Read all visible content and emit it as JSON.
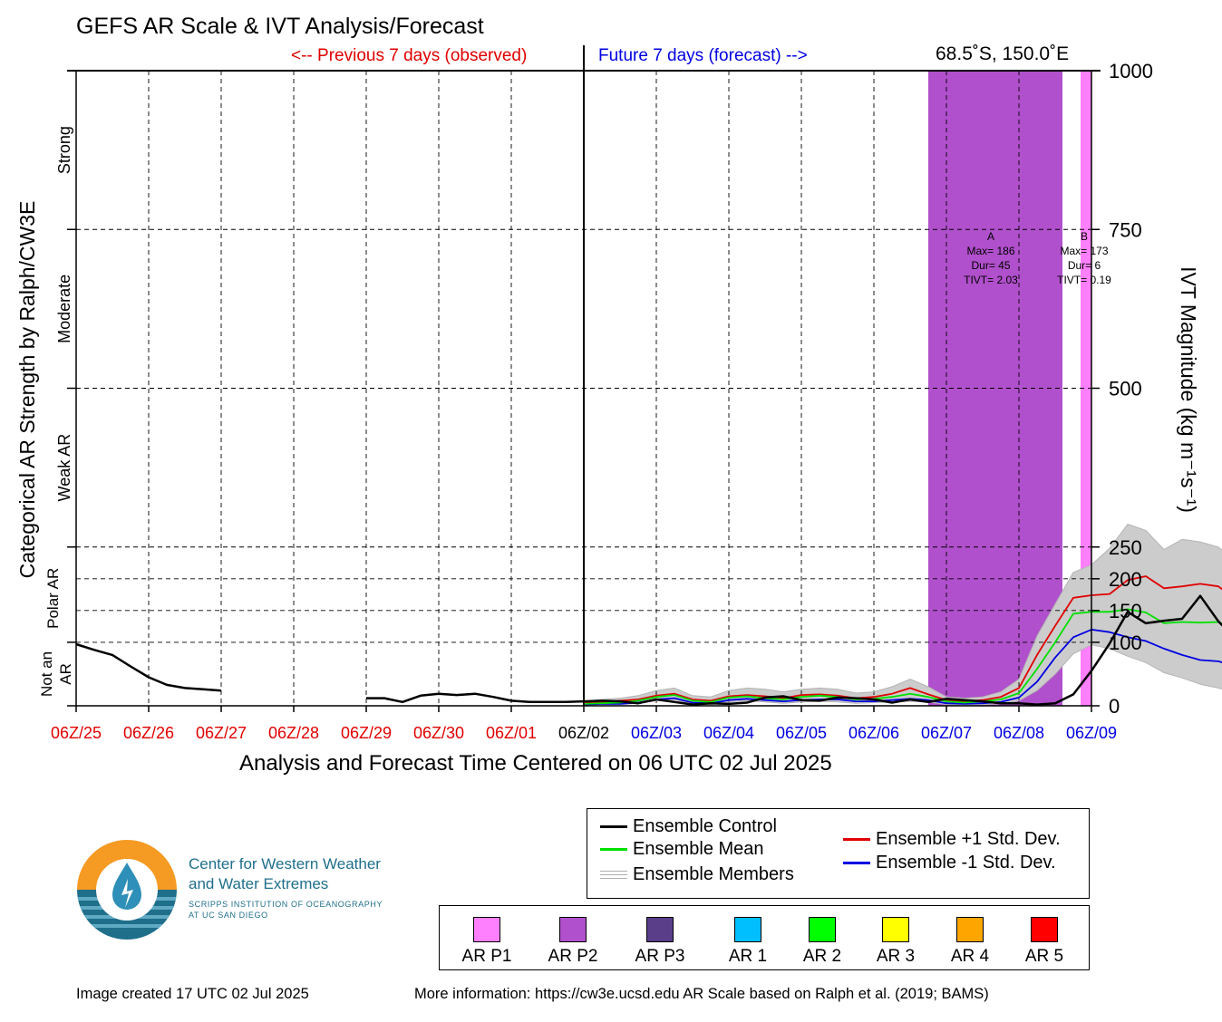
{
  "title": "GEFS AR Scale & IVT Analysis/Forecast",
  "period_labels": {
    "previous": "<-- Previous 7 days (observed)",
    "future": "Future 7 days (forecast) -->"
  },
  "location": "68.5˚S, 150.0˚E",
  "footer": {
    "created": "Image created 17 UTC 02 Jul 2025",
    "more_info": "More information: https://cw3e.ucsd.edu AR Scale based on Ralph et al. (2019; BAMS)"
  },
  "logo": {
    "line1": "Center for Western Weather",
    "line2": "and Water Extremes",
    "line3": "SCRIPPS INSTITUTION OF OCEANOGRAPHY",
    "line4": "AT UC SAN DIEGO"
  },
  "colors": {
    "past_tick": "#e00000",
    "present_tick": "#000000",
    "future_tick": "#0000e0",
    "control": "#000000",
    "mean": "#00e000",
    "plus_std": "#e00000",
    "minus_std": "#0000e0",
    "members": "#b4b4b4",
    "spread_fill": "#cccccc"
  },
  "legend": {
    "series": [
      {
        "label": "Ensemble Control",
        "color": "#000000"
      },
      {
        "label": "Ensemble Mean",
        "color": "#00e000"
      },
      {
        "label": "Ensemble Members",
        "color": "#b4b4b4"
      },
      {
        "label": "Ensemble +1 Std. Dev.",
        "color": "#e00000"
      },
      {
        "label": "Ensemble -1 Std. Dev.",
        "color": "#0000e0"
      }
    ],
    "categories": [
      {
        "label": "AR P1",
        "color": "#ff80ff"
      },
      {
        "label": "AR P2",
        "color": "#b050cc"
      },
      {
        "label": "AR P3",
        "color": "#5a3e8a"
      },
      {
        "label": "AR 1",
        "color": "#00bfff"
      },
      {
        "label": "AR 2",
        "color": "#00ff00"
      },
      {
        "label": "AR 3",
        "color": "#ffff00"
      },
      {
        "label": "AR 4",
        "color": "#ffa500"
      },
      {
        "label": "AR 5",
        "color": "#ff0000"
      }
    ]
  },
  "chart_data": {
    "type": "line",
    "xlabel": "Analysis and Forecast Time Centered on 06 UTC 02 Jul 2025",
    "ylabel_left": "Categorical AR Strength by Ralph/CW3E",
    "ylabel_right": "IVT Magnitude (kg m⁻¹s⁻¹)",
    "x_ticks": [
      "06Z/25",
      "06Z/26",
      "06Z/27",
      "06Z/28",
      "06Z/29",
      "06Z/30",
      "06Z/01",
      "06Z/02",
      "06Z/03",
      "06Z/04",
      "06Z/05",
      "06Z/06",
      "06Z/07",
      "06Z/08",
      "06Z/09"
    ],
    "x_tick_status": [
      "past",
      "past",
      "past",
      "past",
      "past",
      "past",
      "past",
      "present",
      "future",
      "future",
      "future",
      "future",
      "future",
      "future",
      "future"
    ],
    "xlim_days": [
      -7,
      7
    ],
    "time_step_hours": 6,
    "ylim": [
      0,
      1000
    ],
    "y_ticks": [
      0,
      100,
      150,
      200,
      250,
      500,
      750,
      1000
    ],
    "y_tick_labels": [
      "0",
      "100",
      "150",
      "200",
      "250",
      "500",
      "750",
      "1000"
    ],
    "y_gridlines": [
      100,
      150,
      200,
      250,
      500,
      750
    ],
    "grid": true,
    "category_bands": [
      {
        "label": "Not an AR",
        "from": 0,
        "to": 100
      },
      {
        "label": "Polar AR",
        "from": 100,
        "to": 250
      },
      {
        "label": "Weak AR",
        "from": 250,
        "to": 500
      },
      {
        "label": "Moderate",
        "from": 500,
        "to": 750
      },
      {
        "label": "Strong",
        "from": 750,
        "to": 1000
      }
    ],
    "ar_events": [
      {
        "id": "A",
        "start_day": 4.75,
        "end_day": 6.6,
        "category": "AR P2",
        "color": "#b050cc",
        "max_label": "Max= 186",
        "dur_label": "Dur= 45",
        "tivt_label": "TIVT= 2.03"
      },
      {
        "id": "B",
        "start_day": 6.85,
        "end_day": 7.0,
        "category": "AR P1",
        "color": "#ff80ff",
        "max_label": "Max= 173",
        "dur_label": "Dur= 6",
        "tivt_label": "TIVT= 0.19"
      }
    ],
    "series": [
      {
        "name": "Ensemble Control",
        "key": "control",
        "start_day": -7,
        "values": [
          97,
          88,
          80,
          62,
          45,
          33,
          28,
          26,
          24,
          null,
          null,
          null,
          null,
          null,
          null,
          null,
          12,
          12,
          6,
          16,
          19,
          17,
          19,
          14,
          8,
          6,
          6,
          6,
          7,
          8,
          7,
          4,
          10,
          6,
          2,
          4,
          3,
          5,
          13,
          15,
          9,
          8,
          13,
          12,
          10,
          5,
          10,
          6,
          11,
          9,
          7,
          4,
          4,
          2,
          4,
          18,
          55,
          98,
          148,
          130,
          134,
          137,
          173,
          133,
          105,
          106,
          108,
          140,
          184,
          104,
          77,
          90,
          172,
          171
        ]
      },
      {
        "name": "Ensemble Mean",
        "key": "mean",
        "start_day": 0,
        "values": [
          3,
          4,
          5,
          8,
          14,
          17,
          8,
          6,
          13,
          15,
          12,
          10,
          14,
          16,
          14,
          10,
          11,
          14,
          19,
          14,
          7,
          5,
          7,
          10,
          20,
          58,
          100,
          145,
          148,
          148,
          152,
          147,
          130,
          132,
          131,
          132,
          118,
          122,
          128,
          135,
          130,
          131,
          124,
          120
        ]
      },
      {
        "name": "Ensemble +1 Std. Dev.",
        "key": "plus_std",
        "start_day": 0,
        "values": [
          4,
          6,
          8,
          10,
          16,
          19,
          10,
          8,
          15,
          17,
          15,
          12,
          17,
          18,
          16,
          12,
          14,
          19,
          28,
          18,
          9,
          7,
          9,
          14,
          28,
          80,
          126,
          170,
          174,
          176,
          198,
          204,
          185,
          188,
          192,
          188,
          166,
          178,
          198,
          208,
          228,
          230,
          225,
          204
        ]
      },
      {
        "name": "Ensemble -1 Std. Dev.",
        "key": "minus_std",
        "start_day": 0,
        "values": [
          2,
          3,
          3,
          5,
          10,
          12,
          5,
          4,
          9,
          11,
          9,
          7,
          9,
          10,
          10,
          7,
          7,
          9,
          11,
          9,
          4,
          3,
          4,
          6,
          13,
          38,
          76,
          108,
          120,
          116,
          108,
          102,
          90,
          80,
          72,
          70,
          62,
          58,
          56,
          52,
          44,
          38,
          37,
          42
        ]
      }
    ],
    "members": {
      "start_day": 0,
      "min": [
        1,
        2,
        2,
        4,
        8,
        10,
        3,
        2,
        6,
        8,
        6,
        4,
        6,
        7,
        6,
        4,
        5,
        6,
        7,
        6,
        2,
        1,
        2,
        3,
        8,
        24,
        50,
        82,
        96,
        90,
        78,
        68,
        52,
        44,
        34,
        28,
        20,
        18,
        15,
        12,
        8,
        5,
        4,
        6
      ],
      "max": [
        7,
        10,
        12,
        16,
        24,
        28,
        16,
        14,
        24,
        28,
        26,
        22,
        26,
        28,
        26,
        20,
        22,
        30,
        42,
        30,
        14,
        12,
        14,
        22,
        42,
        110,
        160,
        210,
        222,
        248,
        286,
        276,
        246,
        262,
        258,
        250,
        226,
        244,
        268,
        282,
        312,
        306,
        296,
        268
      ]
    }
  }
}
